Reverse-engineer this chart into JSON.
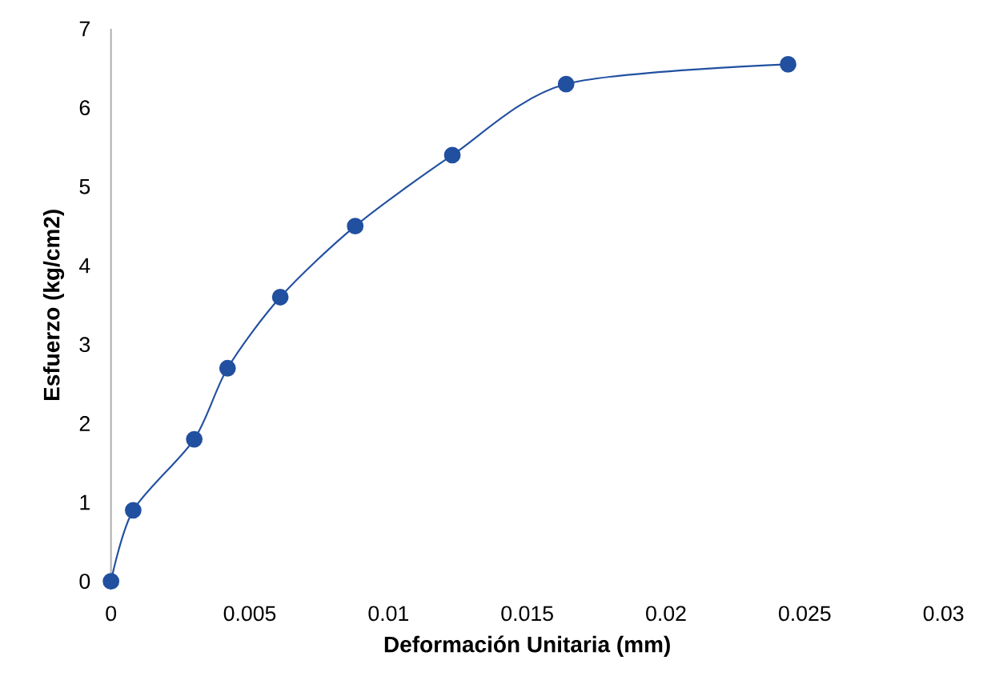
{
  "chart_data": {
    "type": "line",
    "xlabel": "Deformación Unitaria (mm)",
    "ylabel": "Esfuerzo (kg/cm2)",
    "x": [
      0,
      0.0008,
      0.003,
      0.0042,
      0.0061,
      0.0088,
      0.0123,
      0.0164,
      0.0244
    ],
    "values": [
      0,
      0.9,
      1.8,
      2.7,
      3.6,
      4.5,
      5.4,
      6.3,
      6.55
    ],
    "color": "#2250a0",
    "marker": "circle",
    "line_style": "solid",
    "grid": false,
    "xlim": [
      0,
      0.03
    ],
    "xticks": [
      0,
      0.005,
      0.01,
      0.015,
      0.02,
      0.025,
      0.03
    ],
    "ylim": [
      0,
      7
    ],
    "yticks": [
      0,
      1,
      2,
      3,
      4,
      5,
      6,
      7
    ]
  }
}
